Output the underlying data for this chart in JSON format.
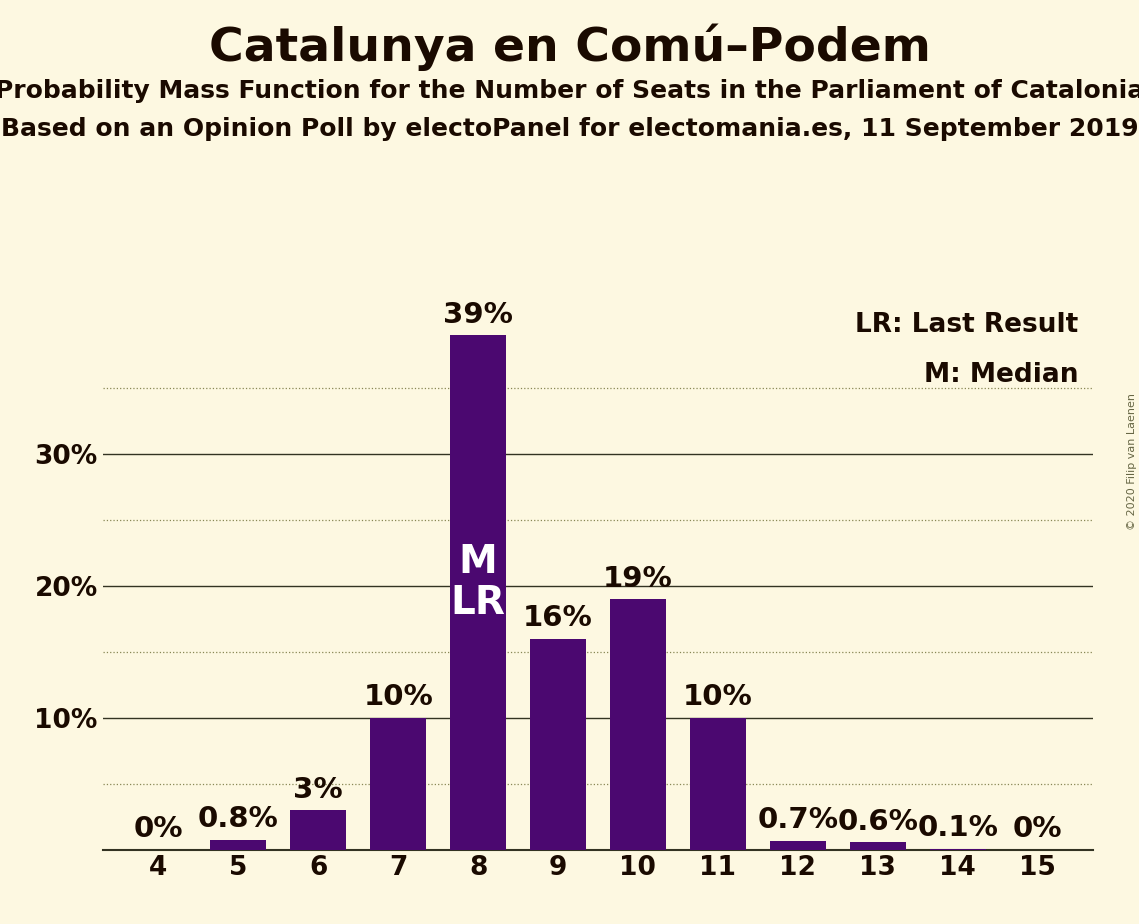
{
  "title": "Catalunya en Comú–Podem",
  "subtitle1": "Probability Mass Function for the Number of Seats in the Parliament of Catalonia",
  "subtitle2": "Based on an Opinion Poll by electoPanel for electomania.es, 11 September 2019",
  "copyright": "© 2020 Filip van Laenen",
  "legend_lr": "LR: Last Result",
  "legend_m": "M: Median",
  "seats": [
    4,
    5,
    6,
    7,
    8,
    9,
    10,
    11,
    12,
    13,
    14,
    15
  ],
  "probabilities": [
    0.0,
    0.8,
    3.0,
    10.0,
    39.0,
    16.0,
    19.0,
    10.0,
    0.7,
    0.6,
    0.1,
    0.0
  ],
  "bar_color": "#4b0870",
  "background_color": "#fdf8e1",
  "label_color": "#1a0a00",
  "median_seat": 8,
  "last_result_seat": 8,
  "ylim_max": 42,
  "ytick_labels": [
    10,
    20,
    30
  ],
  "dotted_lines": [
    5,
    15,
    25,
    35
  ],
  "solid_lines": [
    10,
    20,
    30
  ],
  "bar_width": 0.7,
  "title_fontsize": 34,
  "subtitle_fontsize": 18,
  "tick_fontsize": 19,
  "annotation_fontsize": 21,
  "legend_fontsize": 19,
  "mlr_fontsize": 28,
  "copyright_fontsize": 8
}
